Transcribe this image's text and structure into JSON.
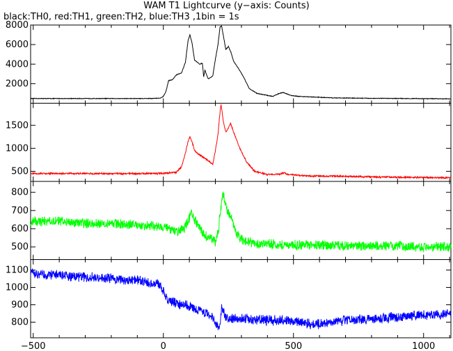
{
  "title": "WAM T1 Lightcurve (y−axis: Counts)",
  "subtitle": "black:TH0, red:TH1, green:TH2, blue:TH3 ,1bin = 1s",
  "chart_data": [
    {
      "type": "line",
      "series": [
        {
          "color": "#000000",
          "noise": 35,
          "points": [
            [
              -510,
              480
            ],
            [
              -400,
              480
            ],
            [
              -300,
              480
            ],
            [
              -200,
              480
            ],
            [
              -100,
              480
            ],
            [
              -40,
              490
            ],
            [
              -10,
              520
            ],
            [
              0,
              700
            ],
            [
              10,
              1200
            ],
            [
              20,
              2300
            ],
            [
              35,
              2400
            ],
            [
              50,
              2900
            ],
            [
              70,
              3100
            ],
            [
              85,
              4200
            ],
            [
              95,
              6400
            ],
            [
              102,
              7000
            ],
            [
              110,
              6200
            ],
            [
              120,
              4400
            ],
            [
              130,
              4200
            ],
            [
              140,
              4000
            ],
            [
              150,
              4100
            ],
            [
              155,
              2700
            ],
            [
              160,
              3400
            ],
            [
              165,
              3000
            ],
            [
              172,
              2500
            ],
            [
              180,
              2600
            ],
            [
              190,
              2800
            ],
            [
              200,
              4500
            ],
            [
              210,
              6000
            ],
            [
              218,
              7800
            ],
            [
              224,
              7900
            ],
            [
              230,
              7000
            ],
            [
              240,
              5500
            ],
            [
              250,
              5800
            ],
            [
              260,
              5200
            ],
            [
              270,
              4300
            ],
            [
              290,
              3500
            ],
            [
              310,
              2600
            ],
            [
              330,
              1500
            ],
            [
              360,
              1000
            ],
            [
              400,
              800
            ],
            [
              420,
              700
            ],
            [
              445,
              1000
            ],
            [
              460,
              1100
            ],
            [
              490,
              800
            ],
            [
              520,
              700
            ],
            [
              560,
              650
            ],
            [
              650,
              550
            ],
            [
              800,
              500
            ],
            [
              950,
              480
            ],
            [
              1100,
              450
            ]
          ]
        }
      ],
      "ylim": [
        0,
        8000
      ],
      "yticks": [
        2000,
        4000,
        6000,
        8000
      ],
      "xlim": [
        -510,
        1105
      ]
    },
    {
      "type": "line",
      "series": [
        {
          "color": "#ff0000",
          "noise": 20,
          "points": [
            [
              -510,
              450
            ],
            [
              -400,
              450
            ],
            [
              -300,
              450
            ],
            [
              -200,
              450
            ],
            [
              -100,
              450
            ],
            [
              0,
              455
            ],
            [
              50,
              480
            ],
            [
              70,
              600
            ],
            [
              85,
              900
            ],
            [
              95,
              1150
            ],
            [
              102,
              1250
            ],
            [
              110,
              1150
            ],
            [
              120,
              950
            ],
            [
              140,
              850
            ],
            [
              160,
              780
            ],
            [
              180,
              700
            ],
            [
              190,
              650
            ],
            [
              200,
              950
            ],
            [
              210,
              1300
            ],
            [
              218,
              1800
            ],
            [
              222,
              1950
            ],
            [
              230,
              1600
            ],
            [
              240,
              1350
            ],
            [
              250,
              1450
            ],
            [
              258,
              1550
            ],
            [
              270,
              1350
            ],
            [
              290,
              1050
            ],
            [
              320,
              700
            ],
            [
              350,
              500
            ],
            [
              400,
              430
            ],
            [
              450,
              440
            ],
            [
              460,
              470
            ],
            [
              480,
              430
            ],
            [
              550,
              400
            ],
            [
              700,
              390
            ],
            [
              900,
              370
            ],
            [
              1100,
              360
            ]
          ]
        }
      ],
      "ylim": [
        280,
        1980
      ],
      "yticks": [
        500,
        1000,
        1500
      ],
      "xlim": [
        -510,
        1105
      ]
    },
    {
      "type": "line",
      "series": [
        {
          "color": "#00ff00",
          "noise": 30,
          "points": [
            [
              -510,
              640
            ],
            [
              -400,
              640
            ],
            [
              -300,
              630
            ],
            [
              -200,
              630
            ],
            [
              -100,
              620
            ],
            [
              0,
              610
            ],
            [
              50,
              580
            ],
            [
              80,
              600
            ],
            [
              100,
              660
            ],
            [
              110,
              690
            ],
            [
              120,
              650
            ],
            [
              140,
              600
            ],
            [
              160,
              560
            ],
            [
              180,
              550
            ],
            [
              190,
              540
            ],
            [
              200,
              520
            ],
            [
              210,
              580
            ],
            [
              220,
              700
            ],
            [
              228,
              800
            ],
            [
              235,
              760
            ],
            [
              245,
              700
            ],
            [
              260,
              660
            ],
            [
              280,
              580
            ],
            [
              300,
              540
            ],
            [
              350,
              520
            ],
            [
              400,
              515
            ],
            [
              500,
              510
            ],
            [
              600,
              510
            ],
            [
              700,
              505
            ],
            [
              800,
              505
            ],
            [
              900,
              505
            ],
            [
              1000,
              500
            ],
            [
              1100,
              500
            ]
          ]
        }
      ],
      "ylim": [
        430,
        860
      ],
      "yticks": [
        500,
        600,
        700,
        800
      ],
      "xlim": [
        -510,
        1105
      ]
    },
    {
      "type": "line",
      "series": [
        {
          "color": "#0000ff",
          "noise": 32,
          "points": [
            [
              -510,
              1080
            ],
            [
              -400,
              1070
            ],
            [
              -300,
              1060
            ],
            [
              -200,
              1050
            ],
            [
              -100,
              1040
            ],
            [
              -20,
              1020
            ],
            [
              0,
              980
            ],
            [
              20,
              920
            ],
            [
              50,
              910
            ],
            [
              100,
              890
            ],
            [
              150,
              860
            ],
            [
              190,
              830
            ],
            [
              205,
              790
            ],
            [
              215,
              760
            ],
            [
              225,
              890
            ],
            [
              235,
              840
            ],
            [
              250,
              820
            ],
            [
              300,
              820
            ],
            [
              400,
              810
            ],
            [
              500,
              810
            ],
            [
              550,
              790
            ],
            [
              600,
              790
            ],
            [
              700,
              810
            ],
            [
              800,
              820
            ],
            [
              900,
              830
            ],
            [
              1000,
              840
            ],
            [
              1100,
              850
            ]
          ]
        }
      ],
      "ylim": [
        710,
        1160
      ],
      "yticks": [
        800,
        900,
        1000,
        1100
      ],
      "xlim": [
        -510,
        1105
      ]
    }
  ],
  "xticks": [
    -500,
    0,
    500,
    1000
  ]
}
